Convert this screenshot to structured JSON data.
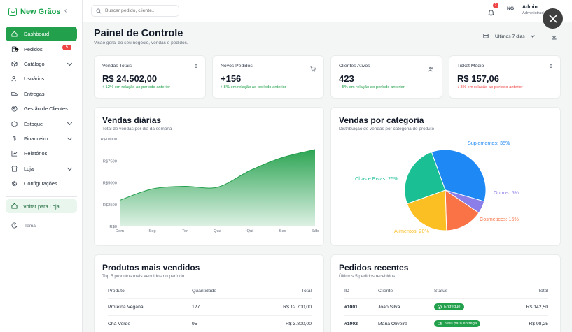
{
  "app": {
    "name": "New Grãos"
  },
  "sidebar": {
    "items": [
      {
        "label": "Dashboard",
        "icon": "home-icon",
        "active": true
      },
      {
        "label": "Pedidos",
        "icon": "receipt-icon",
        "badge": "5"
      },
      {
        "label": "Catálogo",
        "icon": "box-icon",
        "chevron": true
      },
      {
        "label": "Usuários",
        "icon": "users-icon"
      },
      {
        "label": "Entregas",
        "icon": "truck-icon"
      },
      {
        "label": "Gestão de Clientes",
        "icon": "user-circle-icon"
      },
      {
        "label": "Estoque",
        "icon": "package-icon",
        "chevron": true
      },
      {
        "label": "Financeiro",
        "icon": "dollar-icon",
        "chevron": true
      },
      {
        "label": "Relatórios",
        "icon": "chart-icon"
      },
      {
        "label": "Loja",
        "icon": "store-icon",
        "chevron": true
      },
      {
        "label": "Configurações",
        "icon": "gear-icon"
      }
    ],
    "back_to_store": "Voltar para Loja",
    "theme_label": "Tema"
  },
  "topbar": {
    "search_placeholder": "Buscar pedido, cliente...",
    "notifications_count": "2",
    "avatar_initials": "NG",
    "user_name": "Admin",
    "user_role": "Administrador"
  },
  "header": {
    "title": "Painel de Controle",
    "subtitle": "Visão geral do seu negócio, vendas e pedidos.",
    "date_range": "Últimos 7 dias"
  },
  "kpis": [
    {
      "label": "Vendas Totais",
      "value": "R$ 24.502,00",
      "trend": "↑ 12% em relação ao período anterior",
      "direction": "up",
      "icon": "dollar-icon"
    },
    {
      "label": "Novos Pedidos",
      "value": "+156",
      "trend": "↑ 8% em relação ao período anterior",
      "direction": "up",
      "icon": "cart-icon"
    },
    {
      "label": "Clientes Ativos",
      "value": "423",
      "trend": "↑ 5% em relação ao período anterior",
      "direction": "up",
      "icon": "users-icon"
    },
    {
      "label": "Ticket Médio",
      "value": "R$ 157,06",
      "trend": "↓ 3% em relação ao período anterior",
      "direction": "down",
      "icon": "dollar-icon"
    }
  ],
  "sales_chart": {
    "title": "Vendas diárias",
    "subtitle": "Total de vendas por dia da semana"
  },
  "category_chart": {
    "title": "Vendas por categoria",
    "subtitle": "Distribuição de vendas por categoria de produto"
  },
  "chart_data": [
    {
      "type": "area",
      "x": [
        "Dom",
        "Seg",
        "Ter",
        "Qua",
        "Qui",
        "Sex",
        "Sáb"
      ],
      "values": [
        3000,
        4300,
        4600,
        4500,
        6400,
        7900,
        8800
      ],
      "ylim": [
        0,
        10000
      ],
      "y_ticks": [
        "R$0",
        "R$2500",
        "R$5000",
        "R$7500",
        "R$10000"
      ],
      "color": "#22a04b",
      "grid": false
    },
    {
      "type": "pie",
      "slices": [
        {
          "name": "Suplementos",
          "value": 35,
          "label": "Suplementos: 35%",
          "color": "#1e88f5"
        },
        {
          "name": "Outros",
          "value": 5,
          "label": "Outros: 5%",
          "color": "#8b7ee8"
        },
        {
          "name": "Cosméticos",
          "value": 15,
          "label": "Cosméticos: 15%",
          "color": "#f97347"
        },
        {
          "name": "Alimentos",
          "value": 20,
          "label": "Alimentos: 20%",
          "color": "#fbbf24"
        },
        {
          "name": "Chás e Ervas",
          "value": 25,
          "label": "Chás e Ervas: 25%",
          "color": "#1bbf94"
        }
      ]
    }
  ],
  "top_products": {
    "title": "Produtos mais vendidos",
    "subtitle": "Top 5 produtos mais vendidos no período",
    "columns": [
      "Produto",
      "Quantidade",
      "Total"
    ],
    "rows": [
      [
        "Proteína Vegana",
        "127",
        "R$ 12.700,00"
      ],
      [
        "Chá Verde",
        "95",
        "R$ 3.800,00"
      ]
    ]
  },
  "recent_orders": {
    "title": "Pedidos recentes",
    "subtitle": "Últimos 5 pedidos recebidos",
    "columns": [
      "ID",
      "Cliente",
      "Status",
      "Total"
    ],
    "rows": [
      {
        "id": "#1001",
        "client": "João Silva",
        "status": "Entregue",
        "total": "R$ 142,50"
      },
      {
        "id": "#1002",
        "client": "Maria Oliveira",
        "status": "Saiu para entrega",
        "total": "R$ 98,25"
      }
    ]
  }
}
